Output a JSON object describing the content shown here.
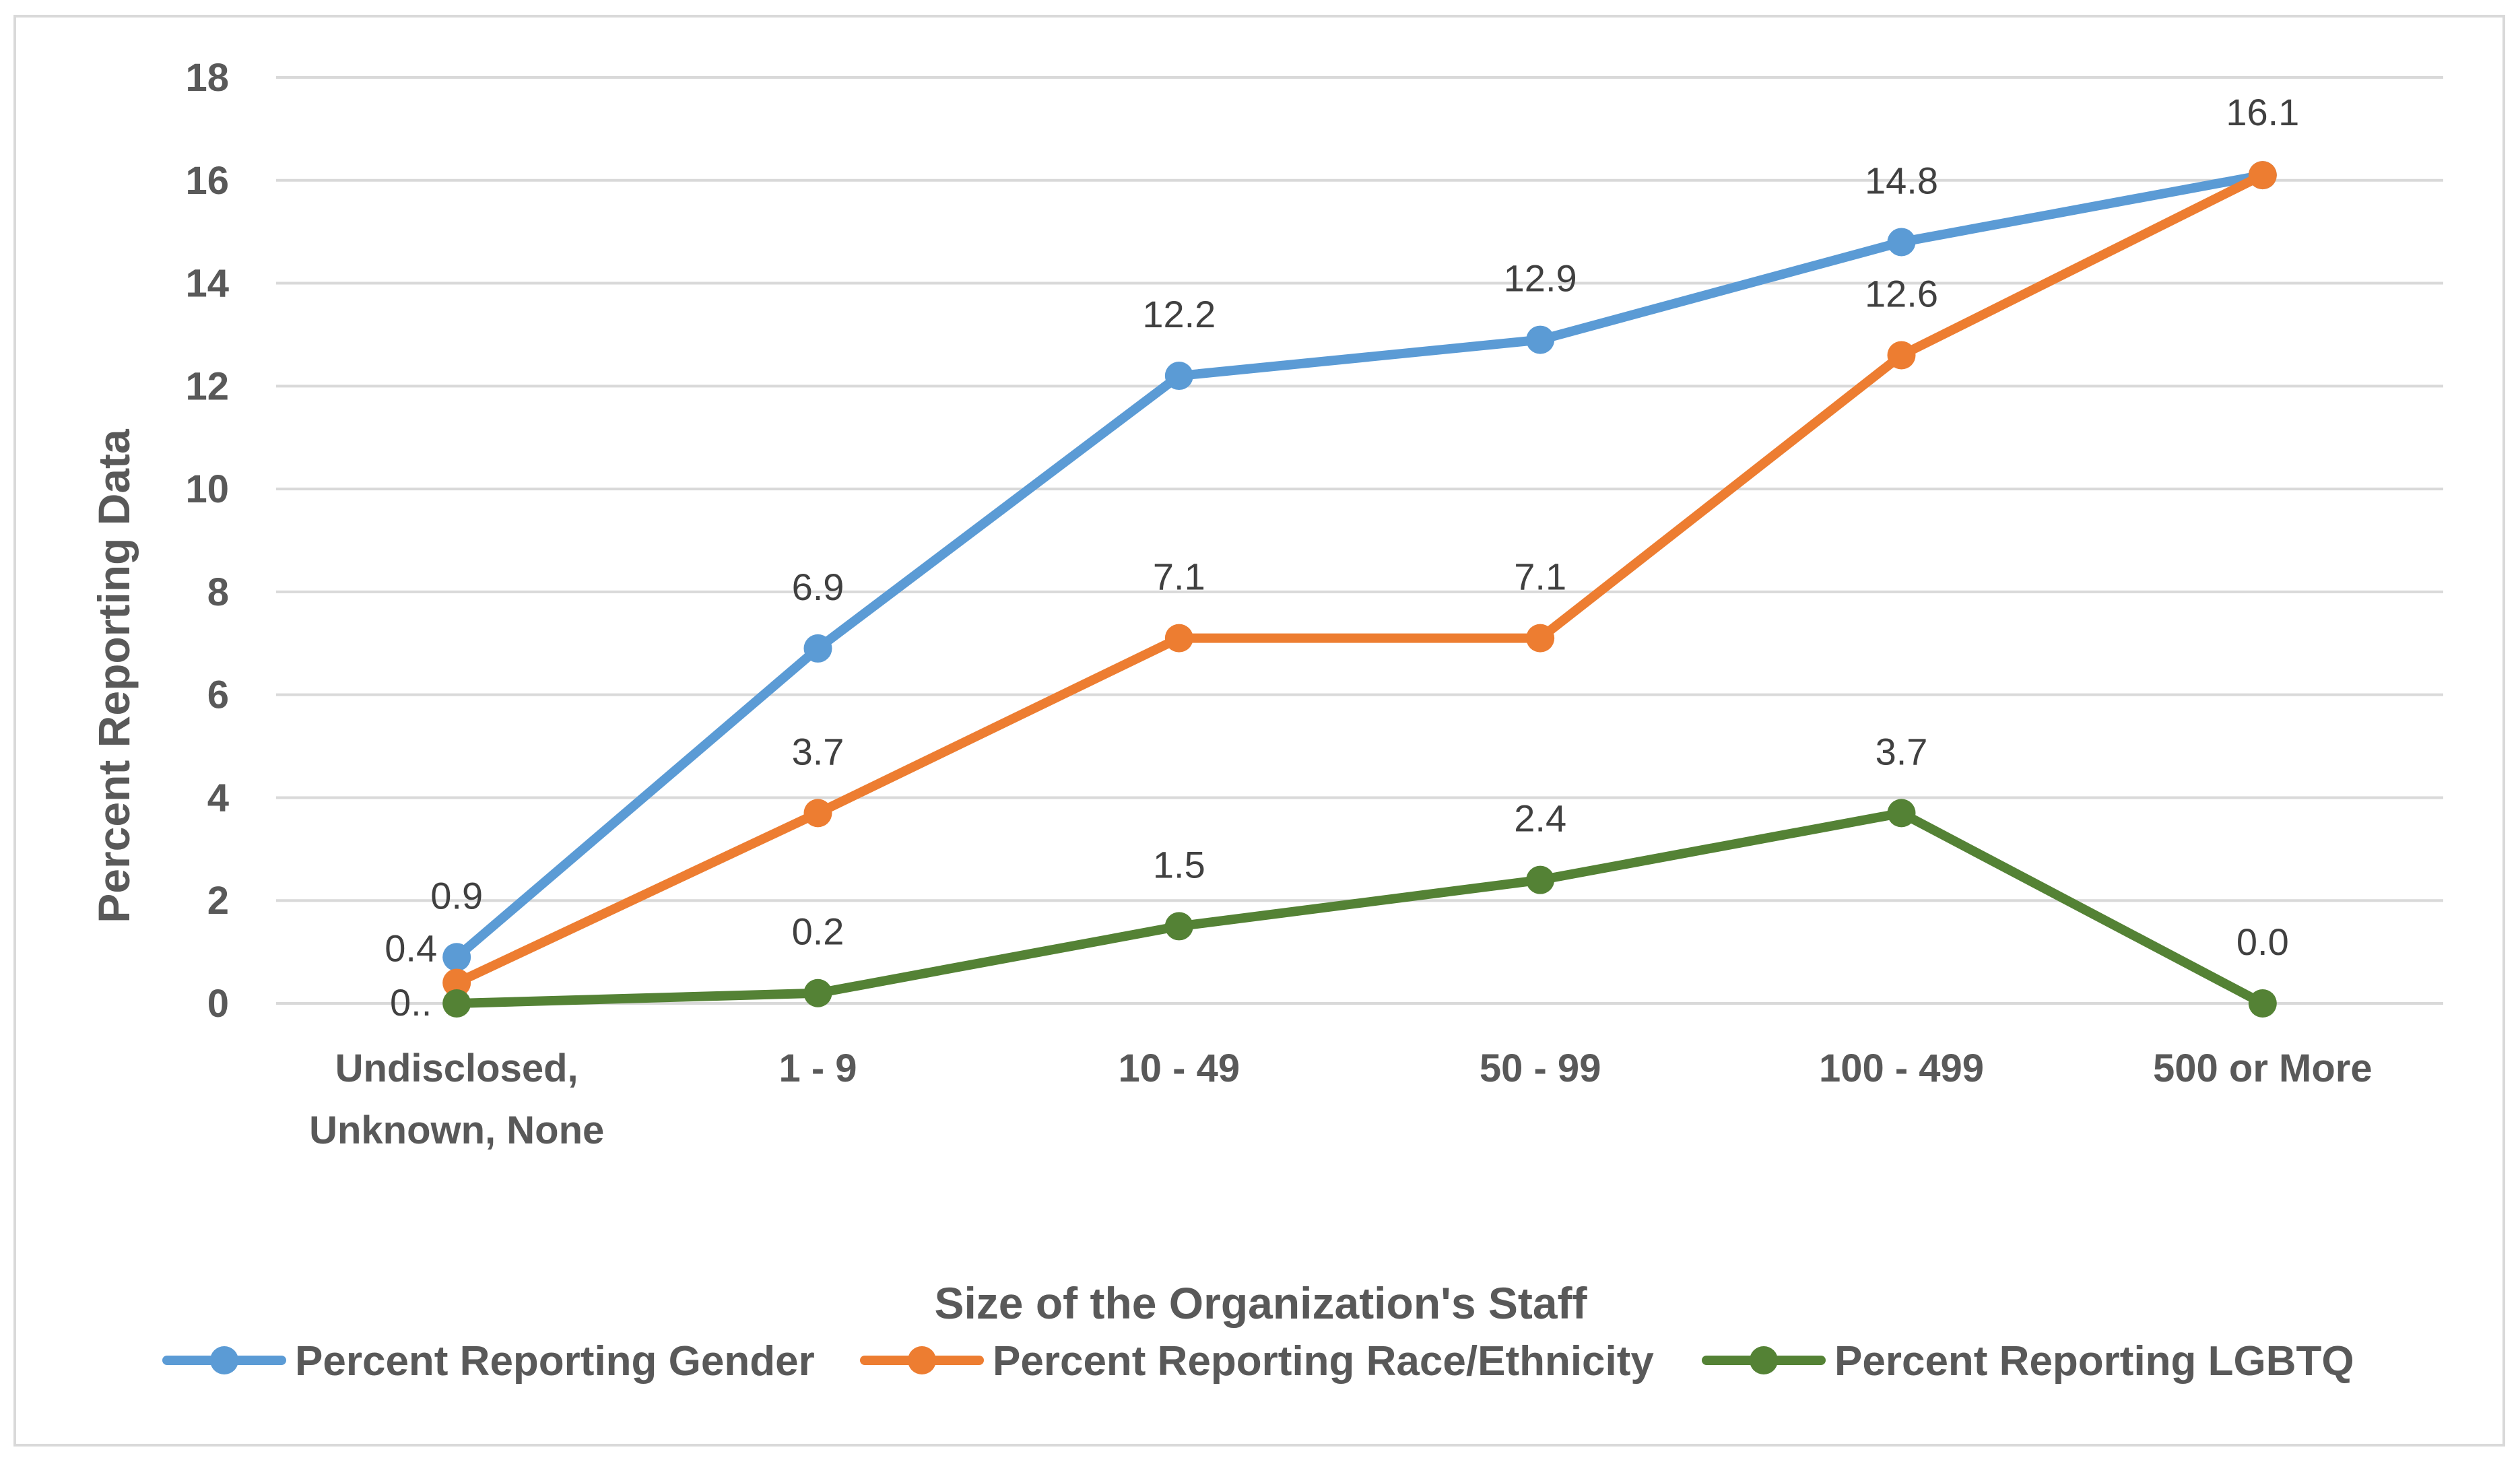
{
  "chart_data": {
    "type": "line",
    "title": "",
    "xlabel": "Size of the Organization's Staff",
    "ylabel": "Percent Reporting Data",
    "ylim": [
      0,
      18
    ],
    "yticks": [
      0,
      2,
      4,
      6,
      8,
      10,
      12,
      14,
      16,
      18
    ],
    "ytick_labels": [
      "0",
      "2",
      "4",
      "6",
      "8",
      "10",
      "12",
      "14",
      "16",
      "18"
    ],
    "grid": true,
    "legend_position": "bottom",
    "categories": [
      [
        "Undisclosed,",
        "Unknown, None"
      ],
      [
        "1 - 9"
      ],
      [
        "10 - 49"
      ],
      [
        "50 - 99"
      ],
      [
        "100 - 499"
      ],
      [
        "500 or More"
      ]
    ],
    "series": [
      {
        "name": "Percent Reporting Gender",
        "color": "#5b9bd5",
        "values": [
          0.9,
          6.9,
          12.2,
          12.9,
          14.8,
          16.1
        ],
        "labels": [
          "0.9",
          "6.9",
          "12.2",
          "12.9",
          "14.8",
          "16.1"
        ]
      },
      {
        "name": "Percent Reporting Race/Ethnicity",
        "color": "#ed7d31",
        "values": [
          0.4,
          3.7,
          7.1,
          7.1,
          12.6,
          16.1
        ],
        "labels": [
          "0.4",
          "3.7",
          "7.1",
          "7.1",
          "12.6",
          ""
        ]
      },
      {
        "name": "Percent Reporting LGBTQ",
        "color": "#548235",
        "values": [
          0.0,
          0.2,
          1.5,
          2.4,
          3.7,
          0.0
        ],
        "labels": [
          "0..",
          "0.2",
          "1.5",
          "2.4",
          "3.7",
          "0.0"
        ]
      }
    ]
  }
}
